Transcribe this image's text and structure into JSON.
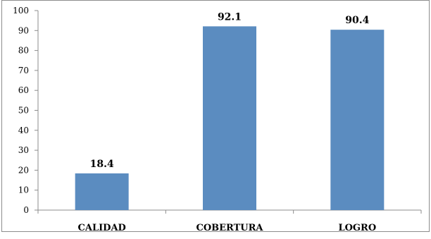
{
  "chart_data": {
    "type": "bar",
    "categories": [
      "CALIDAD",
      "COBERTURA",
      "LOGRO"
    ],
    "values": [
      18.4,
      92.1,
      90.4
    ],
    "data_labels": [
      "18.4",
      "92.1",
      "90.4"
    ],
    "title": "",
    "xlabel": "",
    "ylabel": "",
    "ylim": [
      0,
      100
    ],
    "yticks": [
      0,
      10,
      20,
      30,
      40,
      50,
      60,
      70,
      80,
      90,
      100
    ],
    "grid": false,
    "legend": "none",
    "bar_color": "#5b8cc0"
  }
}
